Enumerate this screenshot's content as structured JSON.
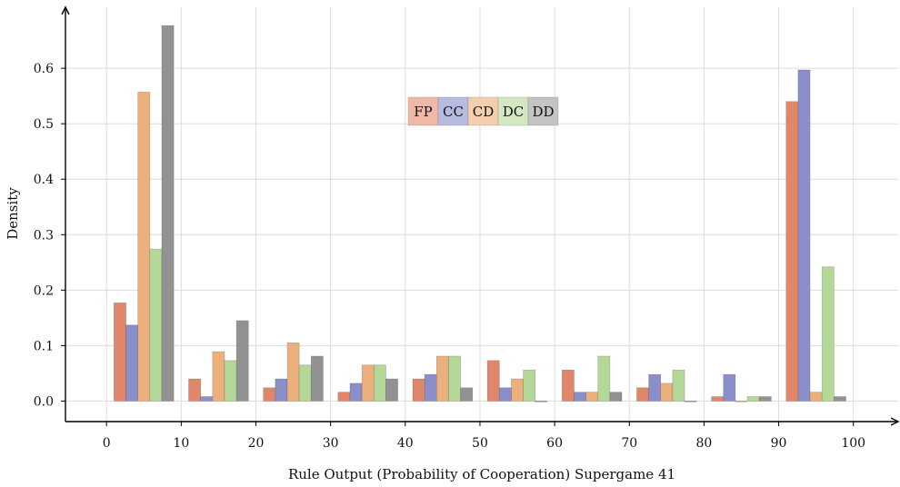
{
  "chart_data": {
    "type": "bar",
    "title": "",
    "xlabel": "Rule Output (Probability of Cooperation) Supergame 41",
    "ylabel": "Density",
    "xlim": [
      -5.5,
      106
    ],
    "ylim": [
      -0.037,
      0.71
    ],
    "x_ticks": [
      0,
      10,
      20,
      30,
      40,
      50,
      60,
      70,
      80,
      90,
      100
    ],
    "y_ticks": [
      0.0,
      0.1,
      0.2,
      0.3,
      0.4,
      0.5,
      0.6
    ],
    "y_tick_labels": [
      "0.0",
      "0.1",
      "0.2",
      "0.3",
      "0.4",
      "0.5",
      "0.6"
    ],
    "grid": true,
    "legend_position": "top-center",
    "bin_edges": [
      0,
      10,
      20,
      30,
      40,
      50,
      60,
      70,
      80,
      90,
      100
    ],
    "series": [
      {
        "name": "FP",
        "color": "#e0866a",
        "legend_color": "#f0b9a6",
        "values": [
          0.177,
          0.04,
          0.024,
          0.016,
          0.04,
          0.073,
          0.056,
          0.024,
          0.008,
          0.54
        ]
      },
      {
        "name": "CC",
        "color": "#8a8fca",
        "legend_color": "#b7bbe0",
        "values": [
          0.137,
          0.008,
          0.04,
          0.032,
          0.048,
          0.024,
          0.016,
          0.048,
          0.048,
          0.597
        ]
      },
      {
        "name": "CD",
        "color": "#ecb07d",
        "legend_color": "#f4cfae",
        "values": [
          0.557,
          0.089,
          0.105,
          0.065,
          0.081,
          0.04,
          0.016,
          0.032,
          0.0,
          0.016
        ]
      },
      {
        "name": "DC",
        "color": "#b3d898",
        "legend_color": "#d3e8c2",
        "values": [
          0.274,
          0.073,
          0.065,
          0.065,
          0.081,
          0.056,
          0.081,
          0.056,
          0.008,
          0.242
        ]
      },
      {
        "name": "DD",
        "color": "#929292",
        "legend_color": "#c4c4c4",
        "values": [
          0.677,
          0.145,
          0.081,
          0.04,
          0.024,
          0.0,
          0.016,
          0.0,
          0.008,
          0.008
        ]
      }
    ]
  }
}
